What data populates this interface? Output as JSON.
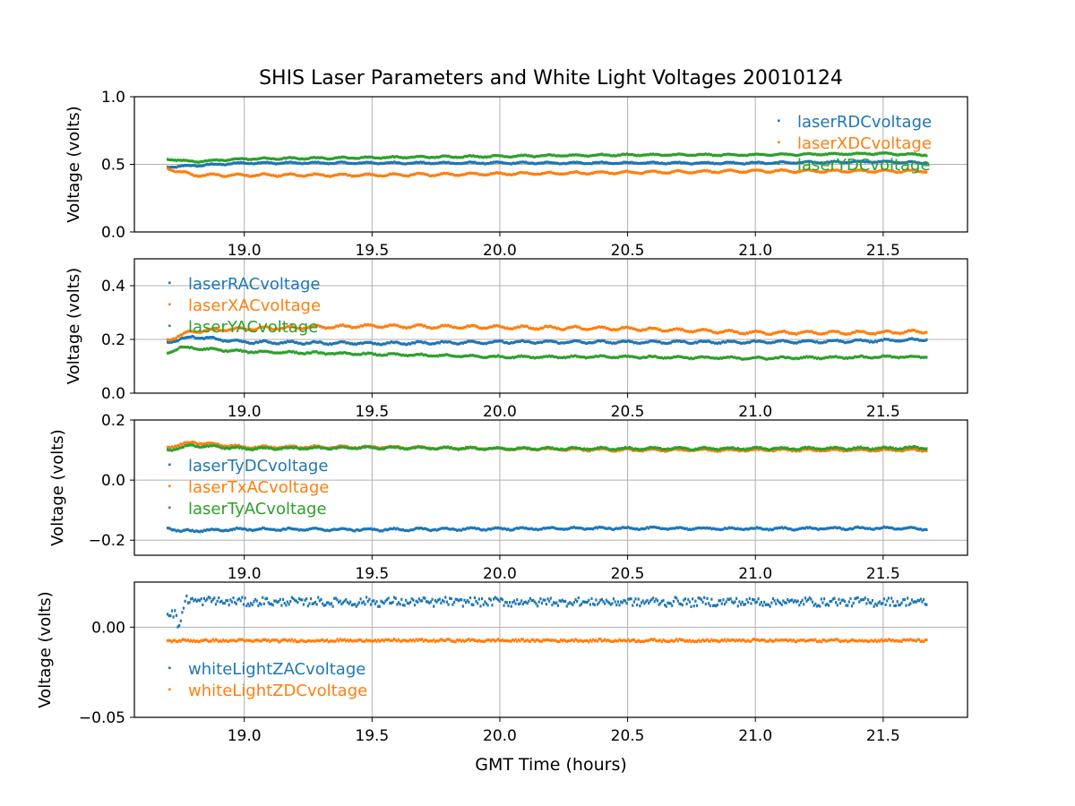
{
  "figure": {
    "title": "SHIS Laser Parameters and White Light Voltages 20010124",
    "xlabel": "GMT Time (hours)"
  },
  "colors": {
    "blue": "#1f77b4",
    "orange": "#ff7f0e",
    "green": "#2ca02c",
    "grid": "#b0b0b0",
    "axis": "#000000"
  },
  "chart_data": [
    {
      "type": "scatter",
      "id": "dc",
      "ylabel": "Voltage (volts)",
      "xlim": [
        18.57,
        21.83
      ],
      "ylim": [
        0.0,
        1.0
      ],
      "xticks": [
        19.0,
        19.5,
        20.0,
        20.5,
        21.0,
        21.5
      ],
      "xtick_labels": [
        "19.0",
        "19.5",
        "20.0",
        "20.5",
        "21.0",
        "21.5"
      ],
      "yticks": [
        0.0,
        0.5,
        1.0
      ],
      "ytick_labels": [
        "0.0",
        "0.5",
        "1.0"
      ],
      "grid": true,
      "legend_position": "top-right",
      "x_range": [
        18.7,
        21.67
      ],
      "series": [
        {
          "name": "laserRDCvoltage",
          "color": "blue",
          "start": 0.48,
          "level": 0.51,
          "ripple": 0.005,
          "noise": 0.003,
          "x": [
            18.7,
            19.0,
            19.5,
            20.0,
            20.5,
            21.0,
            21.5,
            21.67
          ],
          "y": [
            0.48,
            0.51,
            0.51,
            0.51,
            0.51,
            0.51,
            0.52,
            0.51
          ]
        },
        {
          "name": "laserXDCvoltage",
          "color": "orange",
          "start": 0.47,
          "level": 0.42,
          "ripple": 0.008,
          "noise": 0.003,
          "x": [
            18.7,
            18.8,
            19.0,
            19.5,
            20.0,
            20.5,
            21.0,
            21.5,
            21.67
          ],
          "y": [
            0.47,
            0.42,
            0.42,
            0.42,
            0.43,
            0.44,
            0.45,
            0.45,
            0.45
          ]
        },
        {
          "name": "laserYDCvoltage",
          "color": "green",
          "start": 0.54,
          "level": 0.56,
          "ripple": 0.005,
          "noise": 0.003,
          "x": [
            18.7,
            18.8,
            19.0,
            19.5,
            20.0,
            20.5,
            21.0,
            21.5,
            21.67
          ],
          "y": [
            0.54,
            0.52,
            0.54,
            0.55,
            0.56,
            0.57,
            0.57,
            0.58,
            0.57
          ]
        }
      ]
    },
    {
      "type": "scatter",
      "id": "ac",
      "ylabel": "Voltage (volts)",
      "xlim": [
        18.57,
        21.83
      ],
      "ylim": [
        0.0,
        0.5
      ],
      "xticks": [
        19.0,
        19.5,
        20.0,
        20.5,
        21.0,
        21.5
      ],
      "xtick_labels": [
        "19.0",
        "19.5",
        "20.0",
        "20.5",
        "21.0",
        "21.5"
      ],
      "yticks": [
        0.0,
        0.2,
        0.4
      ],
      "ytick_labels": [
        "0.0",
        "0.2",
        "0.4"
      ],
      "grid": true,
      "legend_position": "top-left",
      "x_range": [
        18.7,
        21.67
      ],
      "series": [
        {
          "name": "laserRACvoltage",
          "color": "blue",
          "ripple": 0.004,
          "noise": 0.002,
          "x": [
            18.7,
            18.8,
            19.0,
            19.5,
            20.0,
            20.5,
            21.0,
            21.5,
            21.67
          ],
          "y": [
            0.19,
            0.21,
            0.19,
            0.185,
            0.19,
            0.19,
            0.19,
            0.195,
            0.2
          ]
        },
        {
          "name": "laserXACvoltage",
          "color": "orange",
          "ripple": 0.005,
          "noise": 0.002,
          "x": [
            18.7,
            18.8,
            19.0,
            19.5,
            20.0,
            20.5,
            21.0,
            21.5,
            21.67
          ],
          "y": [
            0.2,
            0.23,
            0.24,
            0.25,
            0.245,
            0.24,
            0.225,
            0.225,
            0.23
          ]
        },
        {
          "name": "laserYACvoltage",
          "color": "green",
          "ripple": 0.003,
          "noise": 0.002,
          "x": [
            18.7,
            18.75,
            19.0,
            19.5,
            20.0,
            20.5,
            21.0,
            21.5,
            21.67
          ],
          "y": [
            0.15,
            0.17,
            0.155,
            0.145,
            0.135,
            0.135,
            0.13,
            0.135,
            0.135
          ]
        }
      ]
    },
    {
      "type": "scatter",
      "id": "tilt",
      "ylabel": "Voltage (volts)",
      "xlim": [
        18.57,
        21.83
      ],
      "ylim": [
        -0.25,
        0.2
      ],
      "xticks": [
        19.0,
        19.5,
        20.0,
        20.5,
        21.0,
        21.5
      ],
      "xtick_labels": [
        "19.0",
        "19.5",
        "20.0",
        "20.5",
        "21.0",
        "21.5"
      ],
      "yticks": [
        -0.2,
        0.0,
        0.2
      ],
      "ytick_labels": [
        "−0.2",
        "0.0",
        "0.2"
      ],
      "grid": true,
      "legend_position": "center-left",
      "x_range": [
        18.7,
        21.67
      ],
      "series": [
        {
          "name": "laserTyDCvoltage",
          "color": "blue",
          "ripple": 0.003,
          "noise": 0.002,
          "x": [
            18.7,
            18.75,
            19.0,
            19.5,
            20.0,
            20.5,
            21.0,
            21.5,
            21.67
          ],
          "y": [
            -0.158,
            -0.17,
            -0.163,
            -0.165,
            -0.162,
            -0.16,
            -0.162,
            -0.16,
            -0.162
          ]
        },
        {
          "name": "laserTxACvoltage",
          "color": "orange",
          "ripple": 0.003,
          "noise": 0.002,
          "x": [
            18.7,
            18.8,
            19.0,
            19.5,
            20.0,
            20.5,
            21.0,
            21.5,
            21.67
          ],
          "y": [
            0.11,
            0.125,
            0.11,
            0.11,
            0.105,
            0.1,
            0.1,
            0.1,
            0.1
          ]
        },
        {
          "name": "laserTyACvoltage",
          "color": "green",
          "ripple": 0.003,
          "noise": 0.002,
          "x": [
            18.7,
            18.8,
            19.0,
            19.5,
            20.0,
            20.5,
            21.0,
            21.5,
            21.67
          ],
          "y": [
            0.1,
            0.115,
            0.105,
            0.108,
            0.105,
            0.105,
            0.105,
            0.106,
            0.108
          ]
        }
      ]
    },
    {
      "type": "scatter",
      "id": "whitelight",
      "ylabel": "Voltage (volts)",
      "xlim": [
        18.57,
        21.83
      ],
      "ylim": [
        -0.05,
        0.025
      ],
      "xticks": [
        19.0,
        19.5,
        20.0,
        20.5,
        21.0,
        21.5
      ],
      "xtick_labels": [
        "19.0",
        "19.5",
        "20.0",
        "20.5",
        "21.0",
        "21.5"
      ],
      "yticks": [
        -0.05,
        0.0
      ],
      "ytick_labels": [
        "−0.05",
        "0.00"
      ],
      "grid": true,
      "legend_position": "lower-left",
      "x_range": [
        18.7,
        21.67
      ],
      "series": [
        {
          "name": "whiteLightZACvoltage",
          "color": "blue",
          "ripple": 0.0005,
          "noise": 0.0022,
          "x": [
            18.7,
            18.73,
            18.74,
            18.75,
            18.77,
            19.0,
            19.5,
            20.0,
            20.5,
            21.0,
            21.5,
            21.67
          ],
          "y": [
            0.0085,
            0.008,
            0.001,
            0.003,
            0.015,
            0.014,
            0.014,
            0.014,
            0.014,
            0.014,
            0.014,
            0.014
          ]
        },
        {
          "name": "whiteLightZDCvoltage",
          "color": "orange",
          "ripple": 0.0002,
          "noise": 0.0006,
          "x": [
            18.7,
            19.0,
            19.5,
            20.0,
            20.5,
            21.0,
            21.5,
            21.67
          ],
          "y": [
            -0.0075,
            -0.0075,
            -0.0074,
            -0.0074,
            -0.0074,
            -0.0074,
            -0.0074,
            -0.0074
          ]
        }
      ]
    }
  ]
}
